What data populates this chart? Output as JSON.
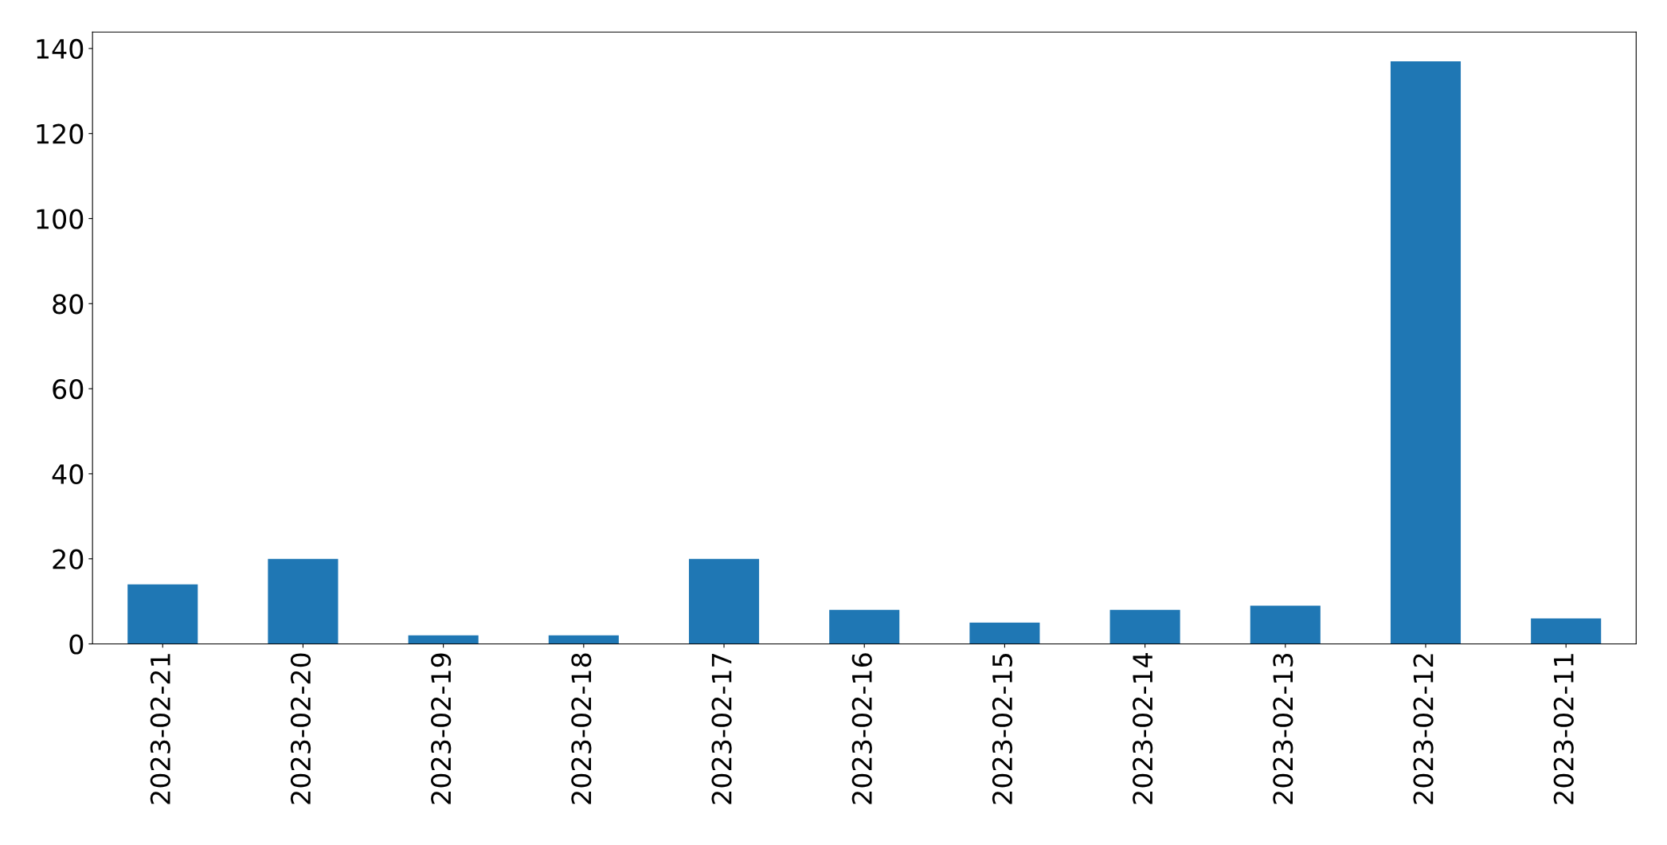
{
  "chart_data": {
    "type": "bar",
    "categories": [
      "2023-02-21",
      "2023-02-20",
      "2023-02-19",
      "2023-02-18",
      "2023-02-17",
      "2023-02-16",
      "2023-02-15",
      "2023-02-14",
      "2023-02-13",
      "2023-02-12",
      "2023-02-11"
    ],
    "values": [
      14,
      20,
      2,
      2,
      20,
      8,
      5,
      8,
      9,
      137,
      6
    ],
    "color": "#1f77b4",
    "ylim": [
      0,
      143.85
    ],
    "yticks": [
      0,
      20,
      40,
      60,
      80,
      100,
      120,
      140
    ],
    "grid": false
  }
}
